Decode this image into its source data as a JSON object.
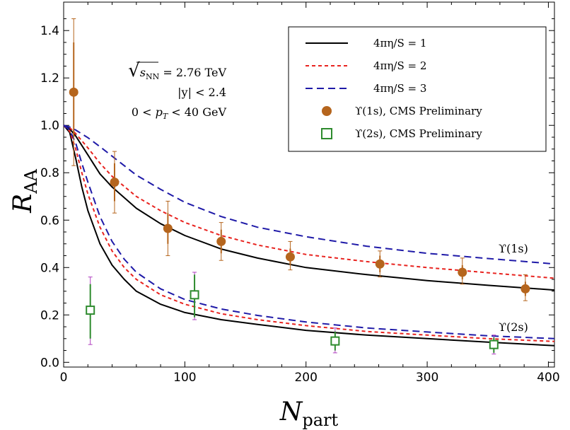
{
  "chart_data": {
    "type": "scatter",
    "title": "",
    "xlabel": "N",
    "xlabel_sub": "part",
    "ylabel": "R",
    "ylabel_sub": "AA",
    "xlim": [
      0,
      405
    ],
    "ylim": [
      -0.02,
      1.52
    ],
    "x_ticks": [
      0,
      100,
      200,
      300,
      400
    ],
    "x_tick_labels": [
      "0",
      "100",
      "200",
      "300",
      "400"
    ],
    "y_ticks": [
      0.0,
      0.2,
      0.4,
      0.6,
      0.8,
      1.0,
      1.2,
      1.4
    ],
    "y_tick_labels": [
      "0.0",
      "0.2",
      "0.4",
      "0.6",
      "0.8",
      "1.0",
      "1.2",
      "1.4"
    ],
    "annotations": {
      "sqrt_symbol": "√",
      "energy_var": "s",
      "energy_sub": "NN",
      "energy_value": " = 2.76 TeV",
      "rapidity": "|y| < 2.4",
      "pt_prefix": "0 < ",
      "pt_var": "p",
      "pt_sub": "T",
      "pt_suffix": " < 40 GeV"
    },
    "curve_labels": {
      "upsilon_1s": "ϒ(1s)",
      "upsilon_2s": "ϒ(2s)"
    },
    "legend": {
      "placement": "top-right",
      "entries": [
        {
          "label": "4πη/S = 1",
          "style": "solid",
          "color": "#000000"
        },
        {
          "label": "4πη/S = 2",
          "style": "dotted",
          "color": "#e8231f"
        },
        {
          "label": "4πη/S = 3",
          "style": "dashed",
          "color": "#1f1aa8"
        },
        {
          "label": "ϒ(1s), CMS Preliminary",
          "style": "filled-circle",
          "color": "#b5651d"
        },
        {
          "label": "ϒ(2s), CMS Preliminary",
          "style": "open-square",
          "color": "#2e8b2e"
        }
      ]
    },
    "series": [
      {
        "name": "4πη/S = 1, ϒ(1s)",
        "style": "solid",
        "color": "#000000",
        "x": [
          0,
          5,
          10,
          20,
          30,
          40,
          60,
          80,
          100,
          130,
          160,
          200,
          250,
          300,
          350,
          405
        ],
        "y": [
          1.0,
          0.985,
          0.955,
          0.875,
          0.795,
          0.74,
          0.65,
          0.585,
          0.535,
          0.478,
          0.44,
          0.4,
          0.37,
          0.345,
          0.325,
          0.305
        ]
      },
      {
        "name": "4πη/S = 2, ϒ(1s)",
        "style": "dotted",
        "color": "#e8231f",
        "x": [
          0,
          5,
          10,
          20,
          30,
          40,
          60,
          80,
          100,
          130,
          160,
          200,
          250,
          300,
          350,
          405
        ],
        "y": [
          1.0,
          0.99,
          0.965,
          0.905,
          0.84,
          0.785,
          0.7,
          0.64,
          0.59,
          0.535,
          0.495,
          0.455,
          0.425,
          0.4,
          0.378,
          0.355
        ]
      },
      {
        "name": "4πη/S = 3, ϒ(1s)",
        "style": "dashed",
        "color": "#1f1aa8",
        "x": [
          0,
          5,
          10,
          20,
          30,
          40,
          60,
          80,
          100,
          130,
          160,
          200,
          250,
          300,
          350,
          405
        ],
        "y": [
          1.0,
          0.993,
          0.98,
          0.948,
          0.91,
          0.87,
          0.79,
          0.73,
          0.675,
          0.615,
          0.57,
          0.53,
          0.49,
          0.46,
          0.438,
          0.415
        ]
      },
      {
        "name": "4πη/S = 1, ϒ(2s)",
        "style": "solid",
        "color": "#000000",
        "x": [
          0,
          5,
          10,
          15,
          20,
          30,
          40,
          50,
          60,
          80,
          100,
          130,
          160,
          200,
          250,
          300,
          350,
          405
        ],
        "y": [
          1.0,
          0.97,
          0.86,
          0.74,
          0.64,
          0.5,
          0.41,
          0.35,
          0.3,
          0.245,
          0.21,
          0.18,
          0.16,
          0.135,
          0.115,
          0.1,
          0.085,
          0.07
        ]
      },
      {
        "name": "4πη/S = 2, ϒ(2s)",
        "style": "dotted",
        "color": "#e8231f",
        "x": [
          0,
          5,
          10,
          15,
          20,
          30,
          40,
          50,
          60,
          80,
          100,
          130,
          160,
          200,
          250,
          300,
          350,
          405
        ],
        "y": [
          1.0,
          0.975,
          0.9,
          0.8,
          0.71,
          0.57,
          0.47,
          0.4,
          0.35,
          0.285,
          0.245,
          0.205,
          0.18,
          0.155,
          0.13,
          0.115,
          0.1,
          0.088
        ]
      },
      {
        "name": "4πη/S = 3, ϒ(2s)",
        "style": "dashed",
        "color": "#1f1aa8",
        "x": [
          0,
          5,
          10,
          15,
          20,
          30,
          40,
          50,
          60,
          80,
          100,
          130,
          160,
          200,
          250,
          300,
          350,
          405
        ],
        "y": [
          1.0,
          0.98,
          0.925,
          0.84,
          0.76,
          0.615,
          0.51,
          0.435,
          0.38,
          0.31,
          0.265,
          0.225,
          0.198,
          0.17,
          0.145,
          0.128,
          0.112,
          0.1
        ]
      }
    ],
    "data_points": [
      {
        "name": "ϒ(1s), CMS Preliminary",
        "marker": "filled-circle",
        "color": "#b5651d",
        "points": [
          {
            "x": 8.3,
            "y": 1.14,
            "stat_lo": 0.95,
            "stat_hi": 1.35,
            "sys_lo": 0.83,
            "sys_hi": 1.45
          },
          {
            "x": 42,
            "y": 0.76,
            "stat_lo": 0.68,
            "stat_hi": 0.84,
            "sys_lo": 0.63,
            "sys_hi": 0.89
          },
          {
            "x": 86,
            "y": 0.565,
            "stat_lo": 0.5,
            "stat_hi": 0.63,
            "sys_lo": 0.45,
            "sys_hi": 0.68
          },
          {
            "x": 130,
            "y": 0.51,
            "stat_lo": 0.46,
            "stat_hi": 0.56,
            "sys_lo": 0.43,
            "sys_hi": 0.59
          },
          {
            "x": 187,
            "y": 0.445,
            "stat_lo": 0.41,
            "stat_hi": 0.48,
            "sys_lo": 0.39,
            "sys_hi": 0.51
          },
          {
            "x": 261,
            "y": 0.415,
            "stat_lo": 0.38,
            "stat_hi": 0.45,
            "sys_lo": 0.36,
            "sys_hi": 0.47
          },
          {
            "x": 329,
            "y": 0.38,
            "stat_lo": 0.35,
            "stat_hi": 0.41,
            "sys_lo": 0.33,
            "sys_hi": 0.44
          },
          {
            "x": 381,
            "y": 0.31,
            "stat_lo": 0.28,
            "stat_hi": 0.34,
            "sys_lo": 0.26,
            "sys_hi": 0.37
          }
        ]
      },
      {
        "name": "ϒ(2s), CMS Preliminary",
        "marker": "open-square",
        "color": "#2e8b2e",
        "points": [
          {
            "x": 22,
            "y": 0.22,
            "stat_lo": 0.1,
            "stat_hi": 0.33,
            "sys_lo": 0.075,
            "sys_hi": 0.36
          },
          {
            "x": 108,
            "y": 0.285,
            "stat_lo": 0.19,
            "stat_hi": 0.37,
            "sys_lo": 0.18,
            "sys_hi": 0.38
          },
          {
            "x": 224,
            "y": 0.09,
            "stat_lo": 0.05,
            "stat_hi": 0.13,
            "sys_lo": 0.04,
            "sys_hi": 0.145
          },
          {
            "x": 355,
            "y": 0.075,
            "stat_lo": 0.04,
            "stat_hi": 0.105,
            "sys_lo": 0.035,
            "sys_hi": 0.115
          }
        ]
      }
    ]
  }
}
